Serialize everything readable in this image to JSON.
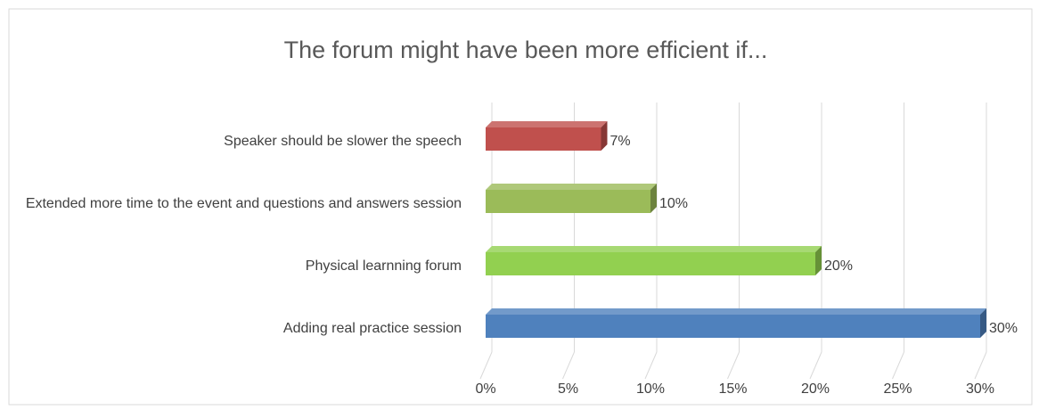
{
  "chart_data": {
    "type": "bar3d_horizontal",
    "title": "The forum might have been more efficient if...",
    "categories": [
      "Speaker should be slower the speech",
      "Extended more time to the event and questions and answers session",
      "Physical learnning forum",
      "Adding real practice session"
    ],
    "values": [
      7,
      10,
      20,
      30
    ],
    "value_labels": [
      "7%",
      "10%",
      "20%",
      "30%"
    ],
    "colors": [
      "#c0504d",
      "#9bbb59",
      "#92d050",
      "#4f81bd"
    ],
    "xlim": [
      0,
      30
    ],
    "xticks": [
      {
        "value": 0,
        "label": "0%"
      },
      {
        "value": 5,
        "label": "5%"
      },
      {
        "value": 10,
        "label": "10%"
      },
      {
        "value": 15,
        "label": "15%"
      },
      {
        "value": 20,
        "label": "20%"
      },
      {
        "value": 25,
        "label": "25%"
      },
      {
        "value": 30,
        "label": "30%"
      }
    ],
    "grid": true
  }
}
